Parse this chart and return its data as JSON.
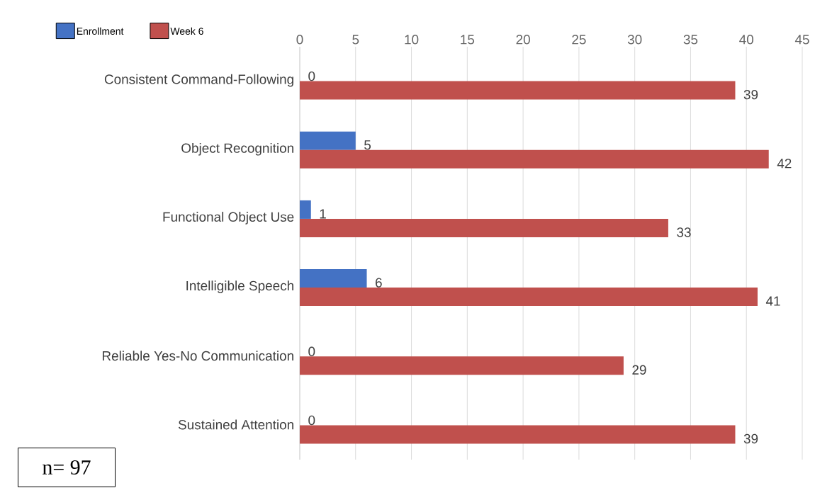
{
  "chart_data": {
    "type": "bar",
    "orientation": "horizontal",
    "categories": [
      "Consistent Command-Following",
      "Object Recognition",
      "Functional Object Use",
      "Intelligible Speech",
      "Reliable Yes-No Communication",
      "Sustained Attention"
    ],
    "series": [
      {
        "name": "Enrollment",
        "color": "#4472c4",
        "values": [
          0,
          5,
          1,
          6,
          0,
          0
        ]
      },
      {
        "name": "Week 6",
        "color": "#c0504d",
        "values": [
          39,
          42,
          33,
          41,
          29,
          39
        ]
      }
    ],
    "xlim": [
      0,
      45
    ],
    "xticks": [
      0,
      5,
      10,
      15,
      20,
      25,
      30,
      35,
      40,
      45
    ],
    "grid": "x",
    "legend": "top left",
    "data_labels": true,
    "annotations": [
      "n= 97"
    ]
  }
}
